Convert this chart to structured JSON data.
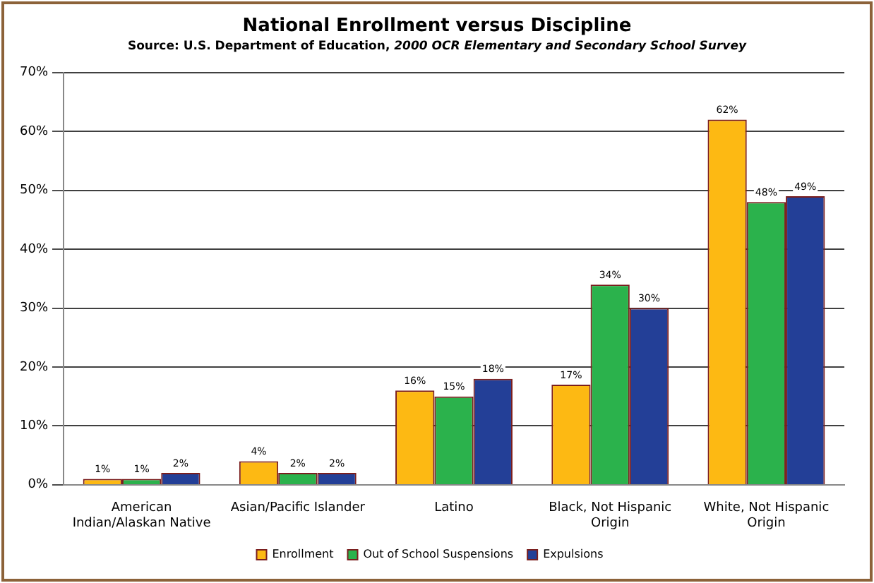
{
  "chart_data": {
    "type": "bar",
    "title": "National Enrollment versus Discipline",
    "subtitle": "Source: U.S. Department of Education, 2000 OCR Elementary and Secondary School Survey",
    "categories": [
      "American Indian/Alaskan Native",
      "Asian/Pacific Islander",
      "Latino",
      "Black, Not Hispanic Origin",
      "White, Not Hispanic Origin"
    ],
    "series": [
      {
        "name": "Enrollment",
        "color": "#fdb913",
        "values": [
          1,
          4,
          16,
          17,
          62
        ],
        "value_labels": [
          "1%",
          "4%",
          "16%",
          "17%",
          "62%"
        ]
      },
      {
        "name": "Out of School Suspensions",
        "color": "#2bb24c",
        "values": [
          1,
          2,
          15,
          34,
          48
        ],
        "value_labels": [
          "1%",
          "2%",
          "15%",
          "34%",
          "48%"
        ]
      },
      {
        "name": "Expulsions",
        "color": "#233f97",
        "values": [
          2,
          2,
          18,
          30,
          49
        ],
        "value_labels": [
          "2%",
          "2%",
          "18%",
          "30%",
          "49%"
        ]
      }
    ],
    "ylim": [
      0,
      70
    ],
    "yticks": [
      {
        "value": 0,
        "label": "0%"
      },
      {
        "value": 10,
        "label": "10%"
      },
      {
        "value": 20,
        "label": "20%"
      },
      {
        "value": 30,
        "label": "30%"
      },
      {
        "value": 40,
        "label": "40%"
      },
      {
        "value": 50,
        "label": "50%"
      },
      {
        "value": 60,
        "label": "60%"
      },
      {
        "value": 70,
        "label": "70%"
      }
    ],
    "grid": "y",
    "legend": "bottom"
  }
}
